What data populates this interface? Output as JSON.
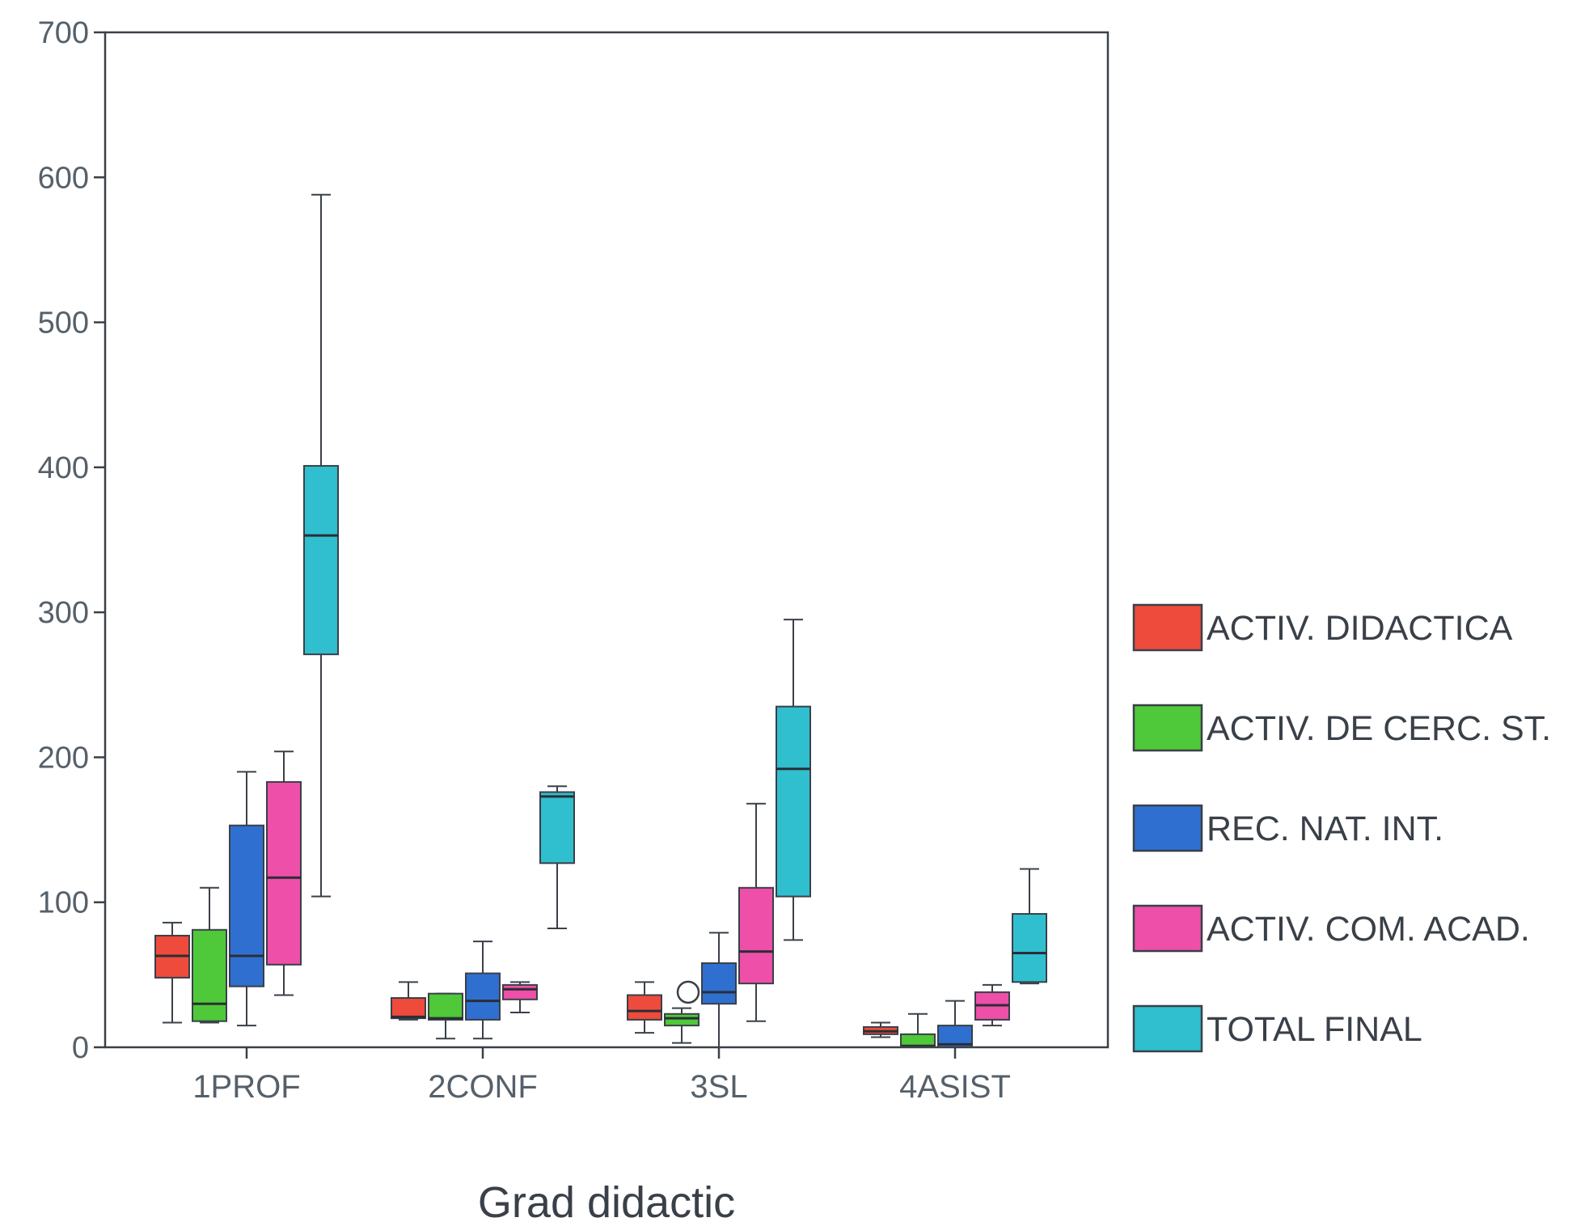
{
  "chart_data": {
    "type": "boxplot",
    "xlabel": "Grad didactic",
    "ylabel": "",
    "ylim": [
      0,
      700
    ],
    "yticks": [
      0,
      100,
      200,
      300,
      400,
      500,
      600,
      700
    ],
    "categories": [
      "1PROF",
      "2CONF",
      "3SL",
      "4ASIST"
    ],
    "legend_position": "right",
    "series": [
      {
        "name": "ACTIV. DIDACTICA",
        "color": "#ee4b3c",
        "boxes": [
          {
            "min": 17,
            "q1": 48,
            "median": 63,
            "q3": 77,
            "max": 86
          },
          {
            "min": 19,
            "q1": 20,
            "median": 21,
            "q3": 34,
            "max": 45
          },
          {
            "min": 10,
            "q1": 19,
            "median": 25,
            "q3": 36,
            "max": 45
          },
          {
            "min": 7,
            "q1": 9,
            "median": 11,
            "q3": 14,
            "max": 17
          }
        ]
      },
      {
        "name": "ACTIV. DE CERC. ST.",
        "color": "#4fc83a",
        "boxes": [
          {
            "min": 17,
            "q1": 18,
            "median": 30,
            "q3": 81,
            "max": 110
          },
          {
            "min": 6,
            "q1": 19,
            "median": 20,
            "q3": 37,
            "max": 37
          },
          {
            "min": 3,
            "q1": 15,
            "median": 20,
            "q3": 23,
            "max": 27,
            "outliers": [
              38
            ]
          },
          {
            "min": 0,
            "q1": 0,
            "median": 1,
            "q3": 9,
            "max": 23
          }
        ]
      },
      {
        "name": "REC. NAT. INT.",
        "color": "#2f6fd0",
        "boxes": [
          {
            "min": 15,
            "q1": 42,
            "median": 63,
            "q3": 153,
            "max": 190
          },
          {
            "min": 6,
            "q1": 19,
            "median": 32,
            "q3": 51,
            "max": 73
          },
          {
            "min": 0,
            "q1": 30,
            "median": 38,
            "q3": 58,
            "max": 79
          },
          {
            "min": 0,
            "q1": 0,
            "median": 2,
            "q3": 15,
            "max": 32
          }
        ]
      },
      {
        "name": "ACTIV. COM. ACAD.",
        "color": "#ee4fa8",
        "boxes": [
          {
            "min": 36,
            "q1": 57,
            "median": 117,
            "q3": 183,
            "max": 204
          },
          {
            "min": 24,
            "q1": 33,
            "median": 40,
            "q3": 43,
            "max": 45
          },
          {
            "min": 18,
            "q1": 44,
            "median": 66,
            "q3": 110,
            "max": 168
          },
          {
            "min": 15,
            "q1": 19,
            "median": 29,
            "q3": 38,
            "max": 43
          }
        ]
      },
      {
        "name": "TOTAL FINAL",
        "color": "#2fbfcf",
        "boxes": [
          {
            "min": 104,
            "q1": 271,
            "median": 353,
            "q3": 401,
            "max": 588
          },
          {
            "min": 82,
            "q1": 127,
            "median": 173,
            "q3": 176,
            "max": 180
          },
          {
            "min": 74,
            "q1": 104,
            "median": 192,
            "q3": 235,
            "max": 295
          },
          {
            "min": 44,
            "q1": 45,
            "median": 65,
            "q3": 92,
            "max": 123
          }
        ]
      }
    ]
  }
}
